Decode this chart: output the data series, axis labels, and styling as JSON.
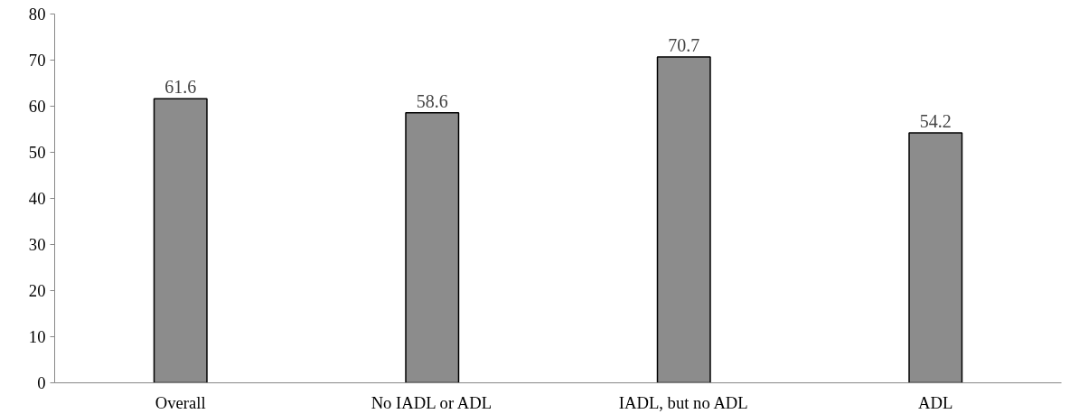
{
  "chart_data": {
    "type": "bar",
    "categories": [
      "Overall",
      "No IADL or ADL",
      "IADL, but no ADL",
      "ADL"
    ],
    "values": [
      61.6,
      58.6,
      70.7,
      54.2
    ],
    "color": "#8c8c8c",
    "ylim": [
      0,
      80
    ],
    "yticks": [
      0,
      10,
      20,
      30,
      40,
      50,
      60,
      70,
      80
    ],
    "grid": false,
    "data_labels": true
  }
}
